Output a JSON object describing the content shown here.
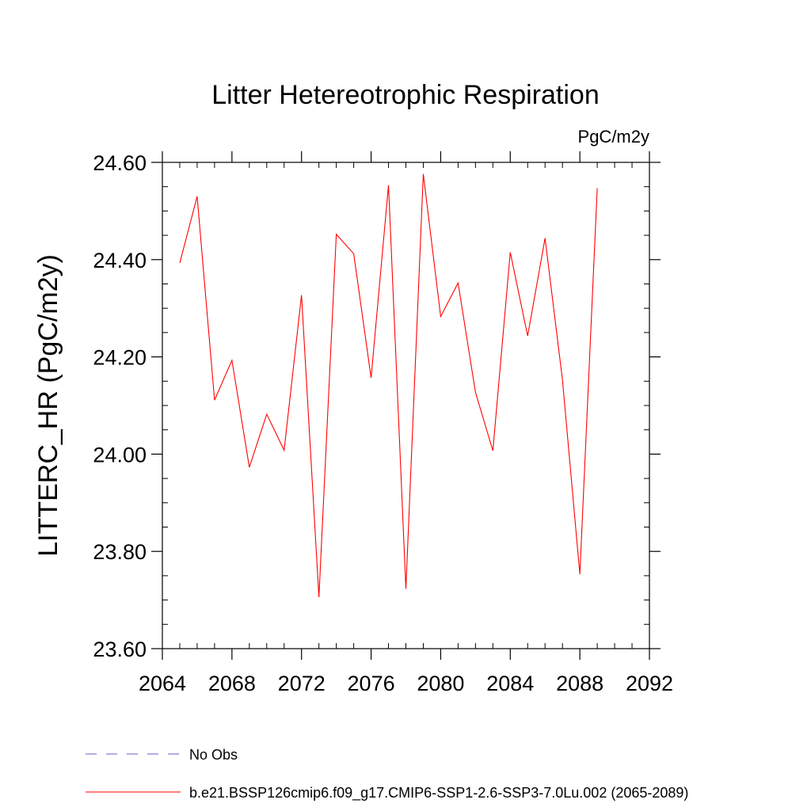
{
  "chart_data": {
    "type": "line",
    "title": "Litter Hetereotrophic Respiration",
    "units_label": "PgC/m2y",
    "ylabel": "LITTERC_HR  (PgC/m2y)",
    "xlabel": "",
    "xlim": [
      2064,
      2092
    ],
    "ylim": [
      23.6,
      24.6
    ],
    "x_ticks": [
      "2064",
      "2068",
      "2072",
      "2076",
      "2080",
      "2084",
      "2088",
      "2092"
    ],
    "y_ticks": [
      "23.60",
      "23.80",
      "24.00",
      "24.20",
      "24.40",
      "24.60"
    ],
    "grid": false,
    "legend_position": "bottom-left",
    "series": [
      {
        "name": "b.e21.BSSP126cmip6.f09_g17.CMIP6-SSP1-2.6-SSP3-7.0Lu.002 (2065-2089)",
        "color": "#ff0000",
        "style": "solid",
        "x": [
          2065,
          2066,
          2067,
          2068,
          2069,
          2070,
          2071,
          2072,
          2073,
          2074,
          2075,
          2076,
          2077,
          2078,
          2079,
          2080,
          2081,
          2082,
          2083,
          2084,
          2085,
          2086,
          2087,
          2088,
          2089
        ],
        "values": [
          24.393,
          24.53,
          24.111,
          24.193,
          23.973,
          24.082,
          24.008,
          24.327,
          23.706,
          24.452,
          24.412,
          24.157,
          24.553,
          23.723,
          24.576,
          24.283,
          24.352,
          24.127,
          24.007,
          24.415,
          24.243,
          24.444,
          24.153,
          23.753,
          24.547
        ]
      }
    ],
    "legend": [
      {
        "label": "No Obs",
        "color": "#6a5acd",
        "style": "dashed"
      },
      {
        "label": "b.e21.BSSP126cmip6.f09_g17.CMIP6-SSP1-2.6-SSP3-7.0Lu.002 (2065-2089)",
        "color": "#ff0000",
        "style": "solid"
      }
    ]
  }
}
